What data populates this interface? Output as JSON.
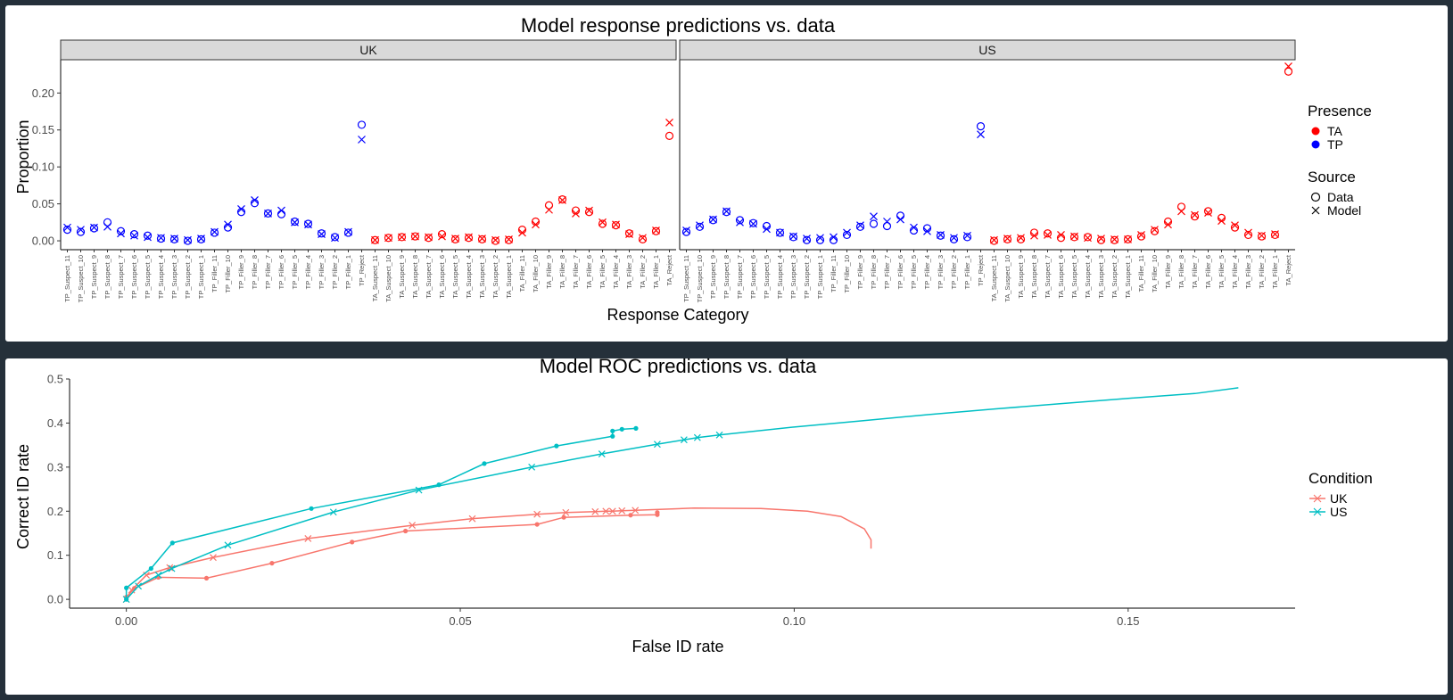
{
  "chart_data": [
    {
      "type": "scatter",
      "title": "Model response predictions vs. data",
      "xlabel": "Response Category",
      "ylabel": "Proportion",
      "facets": [
        "UK",
        "US"
      ],
      "yticks": [
        "0.00",
        "0.05",
        "0.10",
        "0.15",
        "0.20"
      ],
      "ylim": [
        -0.012,
        0.245
      ],
      "categories": [
        "TP_Suspect_11",
        "TP_Suspect_10",
        "TP_Suspect_9",
        "TP_Suspect_8",
        "TP_Suspect_7",
        "TP_Suspect_6",
        "TP_Suspect_5",
        "TP_Suspect_4",
        "TP_Suspect_3",
        "TP_Suspect_2",
        "TP_Suspect_1",
        "TP_Filler_11",
        "TP_Filler_10",
        "TP_Filler_9",
        "TP_Filler_8",
        "TP_Filler_7",
        "TP_Filler_6",
        "TP_Filler_5",
        "TP_Filler_4",
        "TP_Filler_3",
        "TP_Filler_2",
        "TP_Filler_1",
        "TP_Reject",
        "TA_Suspect_11",
        "TA_Suspect_10",
        "TA_Suspect_9",
        "TA_Suspect_8",
        "TA_Suspect_7",
        "TA_Suspect_6",
        "TA_Suspect_5",
        "TA_Suspect_4",
        "TA_Suspect_3",
        "TA_Suspect_2",
        "TA_Suspect_1",
        "TA_Filler_11",
        "TA_Filler_10",
        "TA_Filler_9",
        "TA_Filler_8",
        "TA_Filler_7",
        "TA_Filler_6",
        "TA_Filler_5",
        "TA_Filler_4",
        "TA_Filler_3",
        "TA_Filler_2",
        "TA_Filler_1",
        "TA_Reject"
      ],
      "legend": {
        "presence_title": "Presence",
        "presence": [
          {
            "name": "TA",
            "color": "#ff0000"
          },
          {
            "name": "TP",
            "color": "#0000ff"
          }
        ],
        "source_title": "Source",
        "source": [
          {
            "name": "Data",
            "shape": "circle"
          },
          {
            "name": "Model",
            "shape": "cross"
          }
        ],
        "placement": "right"
      },
      "series": [
        {
          "facet": "UK",
          "source": "Data",
          "values": [
            0.015,
            0.012,
            0.017,
            0.025,
            0.013,
            0.009,
            0.007,
            0.003,
            0.002,
            0.0,
            0.002,
            0.011,
            0.018,
            0.039,
            0.051,
            0.037,
            0.036,
            0.026,
            0.023,
            0.01,
            0.005,
            0.011,
            0.157,
            0.001,
            0.004,
            0.005,
            0.006,
            0.004,
            0.009,
            0.002,
            0.004,
            0.002,
            0.0,
            0.001,
            0.015,
            0.026,
            0.048,
            0.056,
            0.041,
            0.039,
            0.023,
            0.021,
            0.01,
            0.002,
            0.013,
            0.142
          ]
        },
        {
          "facet": "UK",
          "source": "Model",
          "values": [
            0.018,
            0.015,
            0.018,
            0.019,
            0.01,
            0.007,
            0.005,
            0.004,
            0.003,
            0.001,
            0.003,
            0.012,
            0.022,
            0.043,
            0.055,
            0.037,
            0.041,
            0.025,
            0.022,
            0.009,
            0.004,
            0.012,
            0.137,
            0.001,
            0.004,
            0.005,
            0.006,
            0.005,
            0.006,
            0.003,
            0.005,
            0.003,
            0.001,
            0.002,
            0.011,
            0.022,
            0.042,
            0.055,
            0.037,
            0.041,
            0.025,
            0.022,
            0.009,
            0.004,
            0.014,
            0.16
          ]
        },
        {
          "facet": "US",
          "source": "Data",
          "values": [
            0.012,
            0.019,
            0.028,
            0.039,
            0.028,
            0.024,
            0.02,
            0.011,
            0.005,
            0.001,
            0.001,
            0.001,
            0.008,
            0.019,
            0.023,
            0.02,
            0.034,
            0.014,
            0.017,
            0.007,
            0.002,
            0.005,
            0.155,
            0.0,
            0.002,
            0.002,
            0.011,
            0.01,
            0.004,
            0.005,
            0.005,
            0.001,
            0.001,
            0.002,
            0.006,
            0.013,
            0.026,
            0.046,
            0.033,
            0.04,
            0.031,
            0.018,
            0.008,
            0.006,
            0.008,
            0.229
          ]
        },
        {
          "facet": "US",
          "source": "Model",
          "values": [
            0.014,
            0.021,
            0.029,
            0.04,
            0.025,
            0.023,
            0.016,
            0.011,
            0.006,
            0.003,
            0.004,
            0.005,
            0.011,
            0.021,
            0.033,
            0.026,
            0.029,
            0.018,
            0.013,
            0.008,
            0.004,
            0.007,
            0.144,
            0.001,
            0.003,
            0.004,
            0.007,
            0.008,
            0.008,
            0.006,
            0.004,
            0.003,
            0.002,
            0.002,
            0.008,
            0.015,
            0.022,
            0.04,
            0.035,
            0.038,
            0.027,
            0.021,
            0.011,
            0.007,
            0.009,
            0.236
          ]
        }
      ]
    },
    {
      "type": "line",
      "title": "Model ROC predictions vs. data",
      "xlabel": "False ID rate",
      "ylabel": "Correct ID rate",
      "xlim": [
        -0.0085,
        0.175
      ],
      "ylim": [
        -0.02,
        0.5
      ],
      "xticks": [
        "0.00",
        "0.05",
        "0.10",
        "0.15"
      ],
      "yticks": [
        "0.0",
        "0.1",
        "0.2",
        "0.3",
        "0.4",
        "0.5"
      ],
      "legend": {
        "title": "Condition",
        "placement": "right",
        "entries": [
          {
            "name": "UK",
            "color": "#f8766d"
          },
          {
            "name": "US",
            "color": "#00bfc4"
          }
        ]
      },
      "series": [
        {
          "name": "UK",
          "source": "Data",
          "color": "#f8766d",
          "x": [
            0,
            0.0012,
            0.0048,
            0.012,
            0.0218,
            0.0338,
            0.0418,
            0.0615,
            0.0655,
            0.0755,
            0.0795,
            0.0795
          ],
          "y": [
            0.005,
            0.025,
            0.05,
            0.048,
            0.082,
            0.13,
            0.155,
            0.17,
            0.186,
            0.191,
            0.192,
            0.197
          ]
        },
        {
          "name": "UK",
          "source": "Model",
          "color": "#f8766d",
          "x": [
            0,
            0.0008,
            0.003,
            0.0065,
            0.013,
            0.0272,
            0.0428,
            0.0518,
            0.0615,
            0.0658,
            0.0702,
            0.0718,
            0.0728,
            0.0742,
            0.0762
          ],
          "y": [
            0.0,
            0.021,
            0.055,
            0.072,
            0.095,
            0.138,
            0.168,
            0.183,
            0.193,
            0.197,
            0.199,
            0.2,
            0.2,
            0.201,
            0.202
          ],
          "curve_x": [
            0.0762,
            0.085,
            0.095,
            0.102,
            0.107,
            0.1105,
            0.1115,
            0.1115
          ],
          "curve_y": [
            0.202,
            0.207,
            0.206,
            0.2,
            0.188,
            0.16,
            0.135,
            0.115
          ]
        },
        {
          "name": "US",
          "source": "Data",
          "color": "#00bfc4",
          "x": [
            0,
            0.0,
            0.0037,
            0.0069,
            0.0277,
            0.0468,
            0.0536,
            0.0644,
            0.0728,
            0.0728,
            0.0742,
            0.0763
          ],
          "y": [
            0.0,
            0.026,
            0.07,
            0.128,
            0.206,
            0.26,
            0.308,
            0.348,
            0.37,
            0.382,
            0.386,
            0.388
          ]
        },
        {
          "name": "US",
          "source": "Model",
          "color": "#00bfc4",
          "x": [
            0,
            0.0018,
            0.0048,
            0.0068,
            0.0152,
            0.031,
            0.0438,
            0.0607,
            0.0712,
            0.0795,
            0.0835,
            0.0855,
            0.0888
          ],
          "y": [
            0.0,
            0.03,
            0.055,
            0.07,
            0.123,
            0.198,
            0.248,
            0.3,
            0.33,
            0.352,
            0.362,
            0.367,
            0.373
          ],
          "curve_x": [
            0.0888,
            0.1,
            0.11,
            0.12,
            0.13,
            0.14,
            0.15,
            0.16,
            0.1665
          ],
          "curve_y": [
            0.373,
            0.391,
            0.405,
            0.419,
            0.432,
            0.444,
            0.456,
            0.467,
            0.48
          ]
        }
      ]
    }
  ]
}
